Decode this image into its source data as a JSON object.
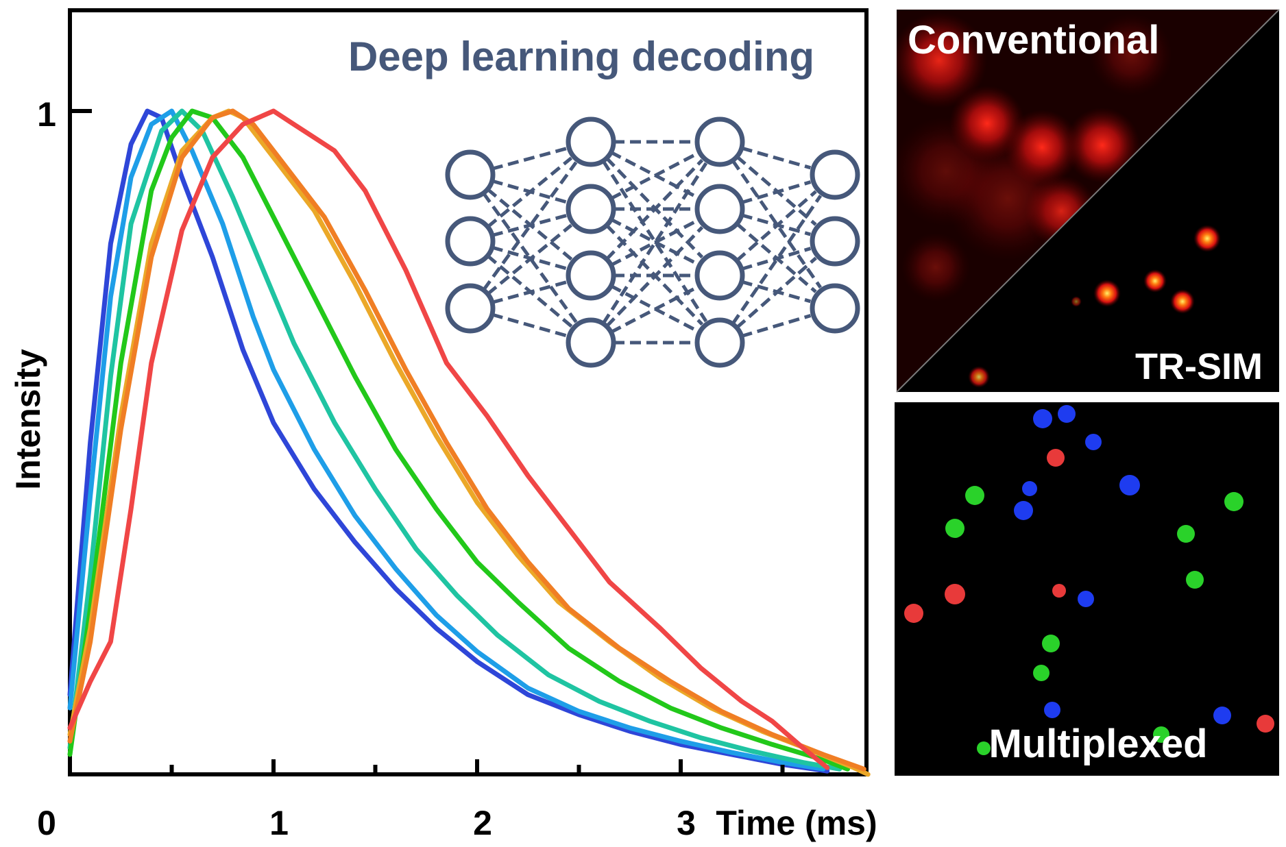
{
  "chart_data": {
    "type": "line",
    "title": "Deep learning decoding",
    "xlabel": "Time (ms)",
    "ylabel": "Intensity",
    "xlim": [
      0,
      3.92
    ],
    "ylim": [
      0,
      1.16
    ],
    "x_ticks": [
      "0",
      "1",
      "2",
      "3"
    ],
    "y_ticks": [
      "1"
    ],
    "grid": false,
    "legend": "none",
    "series": [
      {
        "color": "#2e46d8",
        "x": [
          0,
          0.1,
          0.2,
          0.3,
          0.38,
          0.45,
          0.55,
          0.7,
          0.85,
          1.0,
          1.2,
          1.4,
          1.6,
          1.8,
          2.0,
          2.25,
          2.5,
          2.75,
          3.0,
          3.25,
          3.5,
          3.72
        ],
        "y": [
          0.12,
          0.5,
          0.8,
          0.95,
          1.0,
          0.99,
          0.9,
          0.78,
          0.64,
          0.53,
          0.43,
          0.35,
          0.28,
          0.22,
          0.17,
          0.12,
          0.09,
          0.065,
          0.045,
          0.03,
          0.015,
          0.005
        ]
      },
      {
        "color": "#1e9ee8",
        "x": [
          0,
          0.1,
          0.2,
          0.3,
          0.4,
          0.5,
          0.6,
          0.75,
          0.9,
          1.0,
          1.2,
          1.4,
          1.6,
          1.8,
          2.0,
          2.25,
          2.5,
          2.75,
          3.0,
          3.25,
          3.5,
          3.7
        ],
        "y": [
          0.1,
          0.42,
          0.72,
          0.9,
          0.98,
          1.0,
          0.94,
          0.83,
          0.69,
          0.61,
          0.49,
          0.39,
          0.31,
          0.24,
          0.185,
          0.13,
          0.095,
          0.07,
          0.05,
          0.033,
          0.018,
          0.008
        ]
      },
      {
        "color": "#1fc4a2",
        "x": [
          0,
          0.1,
          0.2,
          0.3,
          0.45,
          0.55,
          0.65,
          0.8,
          0.95,
          1.1,
          1.3,
          1.5,
          1.7,
          1.9,
          2.1,
          2.35,
          2.6,
          2.85,
          3.1,
          3.35,
          3.6,
          3.78
        ],
        "y": [
          0.04,
          0.3,
          0.6,
          0.83,
          0.97,
          1.0,
          0.97,
          0.87,
          0.76,
          0.65,
          0.53,
          0.43,
          0.34,
          0.27,
          0.21,
          0.15,
          0.11,
          0.08,
          0.055,
          0.035,
          0.018,
          0.008
        ]
      },
      {
        "color": "#22c81a",
        "x": [
          0,
          0.1,
          0.25,
          0.4,
          0.5,
          0.6,
          0.7,
          0.85,
          1.0,
          1.2,
          1.4,
          1.6,
          1.8,
          2.0,
          2.2,
          2.45,
          2.7,
          2.95,
          3.2,
          3.45,
          3.7,
          3.82
        ],
        "y": [
          0.03,
          0.25,
          0.62,
          0.88,
          0.96,
          1.0,
          0.99,
          0.93,
          0.84,
          0.72,
          0.6,
          0.49,
          0.4,
          0.32,
          0.26,
          0.19,
          0.14,
          0.1,
          0.07,
          0.045,
          0.022,
          0.008
        ]
      },
      {
        "color": "#eba828",
        "x": [
          0,
          0.1,
          0.25,
          0.4,
          0.55,
          0.7,
          0.78,
          0.85,
          1.0,
          1.2,
          1.4,
          1.6,
          1.8,
          2.0,
          2.2,
          2.4,
          2.65,
          2.9,
          3.15,
          3.4,
          3.65,
          3.85,
          3.92
        ],
        "y": [
          0.06,
          0.22,
          0.54,
          0.8,
          0.94,
          0.99,
          1.0,
          0.99,
          0.93,
          0.85,
          0.74,
          0.62,
          0.51,
          0.41,
          0.33,
          0.26,
          0.2,
          0.145,
          0.1,
          0.065,
          0.035,
          0.01,
          0.0
        ]
      },
      {
        "color": "#f07e24",
        "x": [
          0,
          0.1,
          0.25,
          0.4,
          0.55,
          0.7,
          0.8,
          0.9,
          1.05,
          1.25,
          1.45,
          1.65,
          1.85,
          2.05,
          2.25,
          2.45,
          2.7,
          2.95,
          3.2,
          3.45,
          3.7,
          3.9
        ],
        "y": [
          0.05,
          0.2,
          0.52,
          0.78,
          0.93,
          0.99,
          1.0,
          0.98,
          0.92,
          0.84,
          0.73,
          0.61,
          0.5,
          0.4,
          0.32,
          0.25,
          0.19,
          0.14,
          0.095,
          0.06,
          0.03,
          0.008
        ]
      },
      {
        "color": "#f04646",
        "x": [
          0,
          0.1,
          0.2,
          0.3,
          0.4,
          0.55,
          0.7,
          0.85,
          1.0,
          1.1,
          1.2,
          1.3,
          1.45,
          1.65,
          1.85,
          2.05,
          2.25,
          2.45,
          2.65,
          2.9,
          3.1,
          3.3,
          3.45,
          3.6,
          3.72
        ],
        "y": [
          0.07,
          0.14,
          0.2,
          0.4,
          0.62,
          0.82,
          0.93,
          0.98,
          1.0,
          0.98,
          0.96,
          0.94,
          0.88,
          0.76,
          0.62,
          0.54,
          0.45,
          0.37,
          0.29,
          0.22,
          0.16,
          0.11,
          0.08,
          0.04,
          0.01
        ]
      }
    ]
  },
  "panels": {
    "conventional_label": "Conventional",
    "trsim_label": "TR-SIM",
    "multiplexed_label": "Multiplexed",
    "spot_colors": {
      "red": "#e83a3a",
      "green": "#2ad22a",
      "blue": "#1e3cf0"
    }
  }
}
